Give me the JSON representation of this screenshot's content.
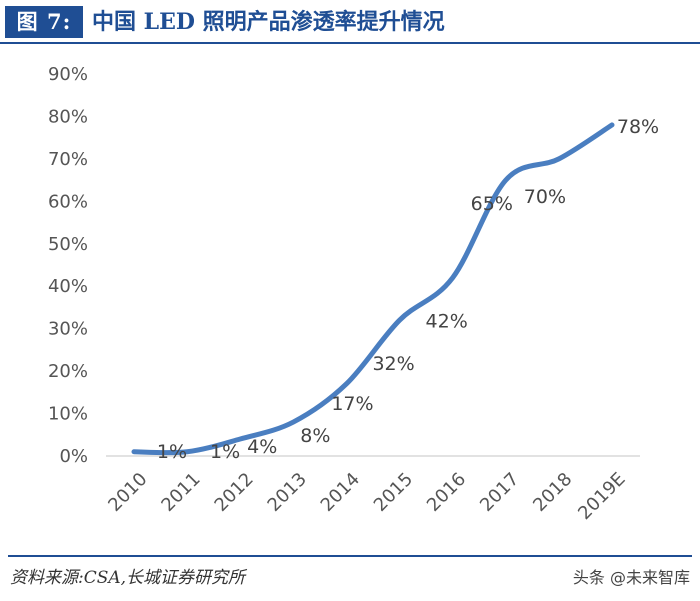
{
  "header": {
    "figure_label": "图 7:",
    "title": "中国 LED 照明产品渗透率提升情况"
  },
  "chart_data": {
    "type": "line",
    "title": "中国 LED 照明产品渗透率提升情况",
    "xlabel": "",
    "ylabel": "",
    "categories": [
      "2010",
      "2011",
      "2012",
      "2013",
      "2014",
      "2015",
      "2016",
      "2017",
      "2018",
      "2019E"
    ],
    "series": [
      {
        "name": "LED照明产品渗透率",
        "values": [
          1,
          1,
          4,
          8,
          17,
          32,
          42,
          65,
          70,
          78
        ],
        "color": "#4a7ec0"
      }
    ],
    "data_labels": [
      "1%",
      "1%",
      "4%",
      "8%",
      "17%",
      "32%",
      "42%",
      "65%",
      "70%",
      "78%"
    ],
    "ylim": [
      0,
      90
    ],
    "yticks": [
      "0%",
      "10%",
      "20%",
      "30%",
      "40%",
      "50%",
      "60%",
      "70%",
      "80%",
      "90%"
    ],
    "grid": false
  },
  "footer": {
    "source": "资料来源:CSA,长城证券研究所",
    "watermark": "头条 @未来智库"
  },
  "colors": {
    "accent": "#1f4e94",
    "line": "#4a7ec0"
  }
}
